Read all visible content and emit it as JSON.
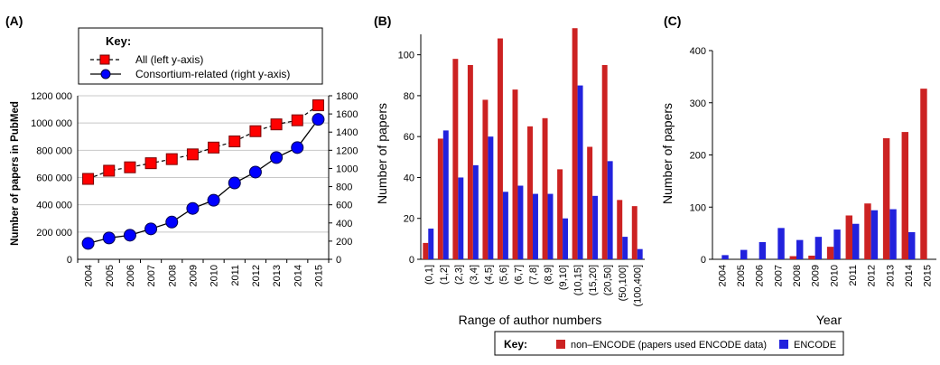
{
  "panels": {
    "a_label": "(A)",
    "b_label": "(B)",
    "c_label": "(C)"
  },
  "chart_data": [
    {
      "type": "line",
      "panel": "(A)",
      "title": "",
      "xlabel": "",
      "ylabel": "Number of papers in PubMed",
      "legend": {
        "title": "Key:",
        "placement": "top",
        "entries": [
          "All (left y-axis)",
          "Consortium-related (right y-axis)"
        ]
      },
      "x": [
        "2004",
        "2005",
        "2006",
        "2007",
        "2008",
        "2009",
        "2010",
        "2011",
        "2012",
        "2013",
        "2014",
        "2015"
      ],
      "ylim_left": [
        0,
        1200000
      ],
      "yticks_left": [
        "0",
        "200 000",
        "400 000",
        "600 000",
        "800 000",
        "1000 000",
        "1200 000"
      ],
      "ylim_right": [
        0,
        1800
      ],
      "yticks_right": [
        "0",
        "200",
        "400",
        "600",
        "800",
        "1000",
        "1200",
        "1400",
        "1600",
        "1800"
      ],
      "grid": true,
      "series": [
        {
          "name": "All (left y-axis)",
          "axis": "left",
          "marker": "square",
          "line_style": "dashed",
          "color": "#ff0000",
          "values": [
            590000,
            650000,
            675000,
            705000,
            735000,
            770000,
            820000,
            865000,
            940000,
            990000,
            1020000,
            1130000
          ]
        },
        {
          "name": "Consortium-related (right y-axis)",
          "axis": "right",
          "marker": "circle",
          "line_style": "solid",
          "color": "#0000ff",
          "values": [
            175,
            235,
            265,
            335,
            410,
            560,
            650,
            840,
            960,
            1120,
            1230,
            1540
          ]
        }
      ]
    },
    {
      "type": "bar",
      "panel": "(B)",
      "title": "",
      "xlabel": "Range of author numbers",
      "ylabel": "Number of papers",
      "ylim": [
        0,
        110
      ],
      "yticks": [
        "0",
        "20",
        "40",
        "60",
        "80",
        "100"
      ],
      "categories": [
        "(0,1]",
        "(1,2]",
        "(2,3]",
        "(3,4]",
        "(4,5]",
        "(5,6]",
        "(6,7]",
        "(7,8]",
        "(8,9]",
        "(9,10]",
        "(10,15]",
        "(15,20]",
        "(20,50]",
        "(50,100]",
        "(100,400]"
      ],
      "series": [
        {
          "name": "non–ENCODE (papers used ENCODE data)",
          "color": "#cc2222",
          "values": [
            8,
            59,
            98,
            95,
            78,
            108,
            83,
            65,
            69,
            44,
            113,
            55,
            95,
            29,
            26
          ]
        },
        {
          "name": "ENCODE",
          "color": "#2222dd",
          "values": [
            15,
            63,
            40,
            46,
            60,
            33,
            36,
            32,
            32,
            20,
            85,
            31,
            48,
            11,
            5
          ]
        }
      ]
    },
    {
      "type": "bar",
      "panel": "(C)",
      "title": "",
      "xlabel": "Year",
      "ylabel": "Number of papers",
      "ylim": [
        0,
        400
      ],
      "yticks": [
        "0",
        "100",
        "200",
        "300",
        "400"
      ],
      "categories": [
        "2004",
        "2005",
        "2006",
        "2007",
        "2008",
        "2009",
        "2010",
        "2011",
        "2012",
        "2013",
        "2014",
        "2015"
      ],
      "series": [
        {
          "name": "non–ENCODE (papers used ENCODE data)",
          "color": "#cc2222",
          "values": [
            0,
            0,
            0,
            0,
            6,
            7,
            24,
            84,
            107,
            232,
            244,
            327
          ]
        },
        {
          "name": "ENCODE",
          "color": "#2222dd",
          "values": [
            8,
            18,
            33,
            60,
            37,
            43,
            57,
            68,
            94,
            96,
            52,
            0
          ]
        }
      ]
    }
  ],
  "shared_legend": {
    "title": "Key:",
    "entries": [
      {
        "label": "non–ENCODE (papers used ENCODE data)",
        "color": "#cc2222"
      },
      {
        "label": "ENCODE",
        "color": "#2222dd"
      }
    ]
  }
}
